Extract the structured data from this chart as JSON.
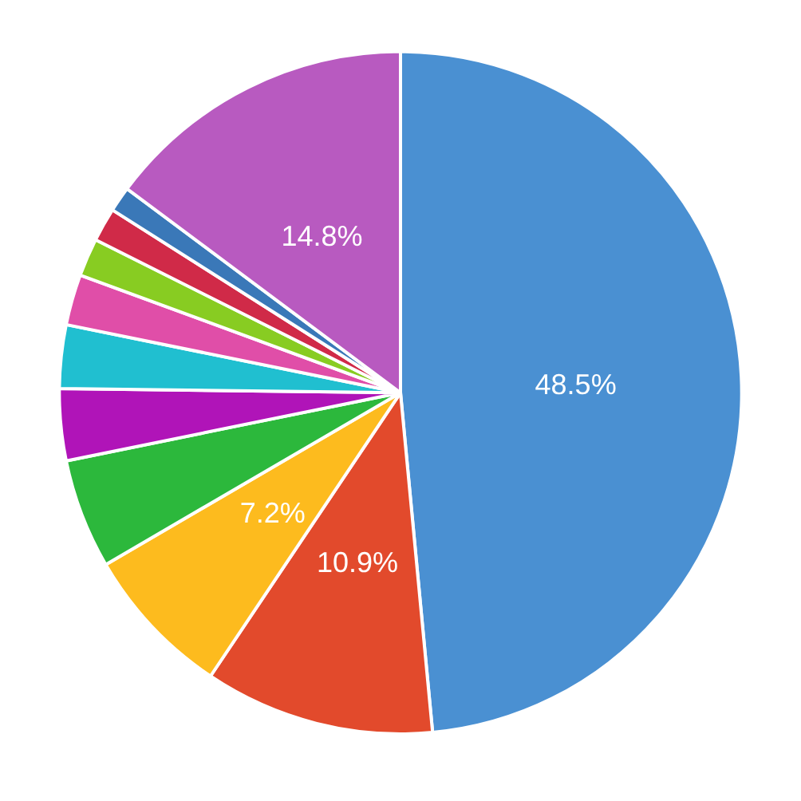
{
  "chart_data": {
    "type": "pie",
    "categories": [
      null,
      null,
      null,
      null,
      null,
      null,
      null,
      null,
      null,
      null,
      null
    ],
    "values": [
      48.5,
      10.9,
      7.2,
      5.2,
      3.4,
      3.0,
      2.4,
      1.8,
      1.6,
      1.2,
      14.8
    ],
    "colors": [
      "#4a90d2",
      "#e24a2c",
      "#fdbb1e",
      "#2cb83c",
      "#b014b8",
      "#20bfd0",
      "#e04ea8",
      "#88cc22",
      "#d02a48",
      "#3a78b8",
      "#b85ac0"
    ],
    "value_labels": [
      "48.5%",
      "10.9%",
      "7.2%",
      null,
      null,
      null,
      null,
      null,
      null,
      null,
      "14.8%"
    ]
  }
}
